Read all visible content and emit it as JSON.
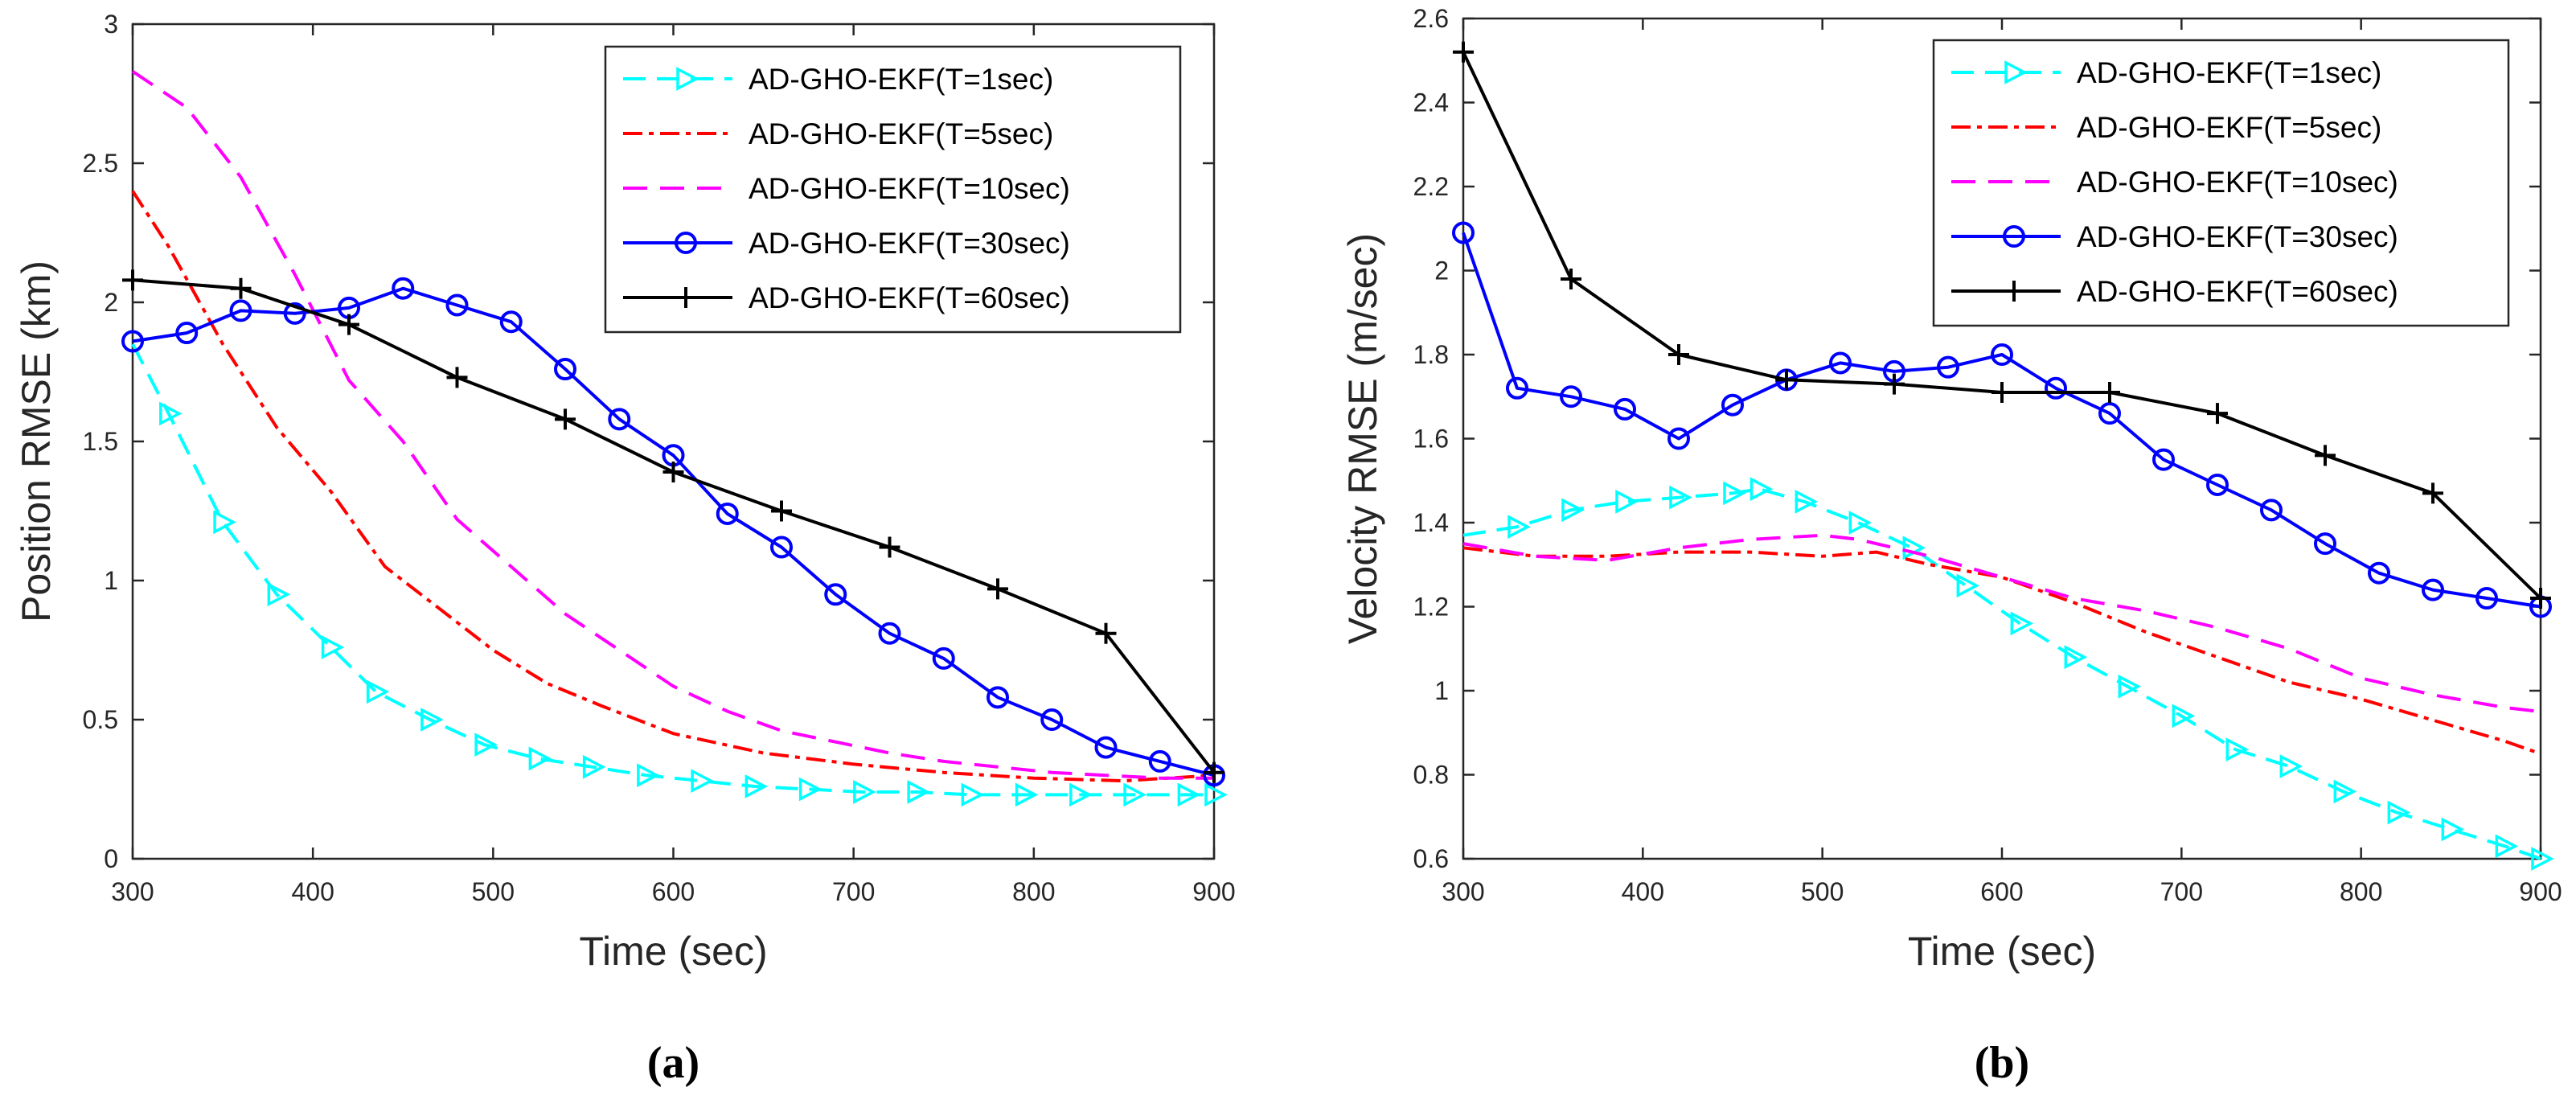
{
  "chart_data": [
    {
      "type": "line",
      "panel_label": "(a)",
      "xlabel": "Time (sec)",
      "ylabel": "Position RMSE (km)",
      "xlim": [
        300,
        900
      ],
      "ylim": [
        0,
        3
      ],
      "xticks": [
        "300",
        "400",
        "500",
        "600",
        "700",
        "800",
        "900"
      ],
      "yticks": [
        "0",
        "0.5",
        "1",
        "1.5",
        "2",
        "2.5",
        "3"
      ],
      "legend_position": "top-right",
      "series": [
        {
          "name": "AD-GHO-EKF(T=1sec)",
          "color": "#00ffff",
          "dash": "28,14",
          "marker": "triangle-right",
          "x": [
            300,
            320,
            350,
            380,
            410,
            435,
            465,
            495,
            525,
            555,
            585,
            615,
            645,
            675,
            705,
            735,
            765,
            795,
            825,
            855,
            885,
            900
          ],
          "y": [
            1.85,
            1.6,
            1.21,
            0.95,
            0.76,
            0.6,
            0.5,
            0.41,
            0.36,
            0.33,
            0.3,
            0.28,
            0.26,
            0.25,
            0.24,
            0.24,
            0.23,
            0.23,
            0.23,
            0.23,
            0.23,
            0.23
          ],
          "marker_x": [
            320,
            350,
            380,
            410,
            435,
            465,
            495,
            525,
            555,
            585,
            615,
            645,
            675,
            705,
            735,
            765,
            795,
            825,
            855,
            885,
            900
          ]
        },
        {
          "name": "AD-GHO-EKF(T=5sec)",
          "color": "#ff0000",
          "dash": "24,8,6,8",
          "marker": "none",
          "x": [
            300,
            320,
            350,
            380,
            410,
            440,
            470,
            500,
            530,
            560,
            600,
            650,
            700,
            750,
            800,
            850,
            900
          ],
          "y": [
            2.4,
            2.2,
            1.85,
            1.55,
            1.32,
            1.05,
            0.9,
            0.75,
            0.63,
            0.55,
            0.45,
            0.38,
            0.34,
            0.31,
            0.29,
            0.28,
            0.3
          ]
        },
        {
          "name": "AD-GHO-EKF(T=10sec)",
          "color": "#ff00ff",
          "dash": "30,16",
          "marker": "none",
          "x": [
            300,
            330,
            360,
            390,
            420,
            450,
            480,
            510,
            540,
            570,
            600,
            630,
            660,
            690,
            720,
            750,
            780,
            810,
            840,
            870,
            900
          ],
          "y": [
            2.83,
            2.7,
            2.45,
            2.1,
            1.72,
            1.5,
            1.22,
            1.05,
            0.88,
            0.75,
            0.62,
            0.53,
            0.46,
            0.42,
            0.38,
            0.35,
            0.33,
            0.31,
            0.3,
            0.29,
            0.29
          ]
        },
        {
          "name": "AD-GHO-EKF(T=30sec)",
          "color": "#0000ff",
          "dash": "",
          "marker": "circle",
          "x": [
            300,
            330,
            360,
            390,
            420,
            450,
            480,
            510,
            540,
            570,
            600,
            630,
            660,
            690,
            720,
            750,
            780,
            810,
            840,
            870,
            900
          ],
          "y": [
            1.86,
            1.89,
            1.97,
            1.96,
            1.98,
            2.05,
            1.99,
            1.93,
            1.76,
            1.58,
            1.45,
            1.24,
            1.12,
            0.95,
            0.81,
            0.72,
            0.58,
            0.5,
            0.4,
            0.35,
            0.3
          ]
        },
        {
          "name": "AD-GHO-EKF(T=60sec)",
          "color": "#000000",
          "dash": "",
          "marker": "plus",
          "x": [
            300,
            360,
            420,
            480,
            540,
            600,
            660,
            720,
            780,
            840,
            900
          ],
          "y": [
            2.08,
            2.05,
            1.92,
            1.73,
            1.58,
            1.39,
            1.25,
            1.12,
            0.97,
            0.81,
            0.31
          ]
        }
      ]
    },
    {
      "type": "line",
      "panel_label": "(b)",
      "xlabel": "Time (sec)",
      "ylabel": "Velocity RMSE (m/sec)",
      "xlim": [
        300,
        900
      ],
      "ylim": [
        0.6,
        2.6
      ],
      "xticks": [
        "300",
        "400",
        "500",
        "600",
        "700",
        "800",
        "900"
      ],
      "yticks": [
        "0.6",
        "0.8",
        "1",
        "1.2",
        "1.4",
        "1.6",
        "1.8",
        "2",
        "2.2",
        "2.4",
        "2.6"
      ],
      "legend_position": "top-right",
      "series": [
        {
          "name": "AD-GHO-EKF(T=1sec)",
          "color": "#00ffff",
          "dash": "28,14",
          "marker": "triangle-right",
          "x": [
            300,
            330,
            360,
            390,
            420,
            450,
            465,
            490,
            520,
            550,
            580,
            610,
            640,
            670,
            700,
            730,
            760,
            790,
            820,
            850,
            880,
            900
          ],
          "y": [
            1.37,
            1.39,
            1.43,
            1.45,
            1.46,
            1.47,
            1.48,
            1.45,
            1.4,
            1.34,
            1.25,
            1.16,
            1.08,
            1.01,
            0.94,
            0.86,
            0.82,
            0.76,
            0.71,
            0.67,
            0.63,
            0.6
          ],
          "marker_x": [
            330,
            360,
            390,
            420,
            450,
            465,
            490,
            520,
            550,
            580,
            610,
            640,
            670,
            700,
            730,
            760,
            790,
            820,
            850,
            880,
            900
          ]
        },
        {
          "name": "AD-GHO-EKF(T=5sec)",
          "color": "#ff0000",
          "dash": "24,8,6,8",
          "marker": "none",
          "x": [
            300,
            340,
            380,
            420,
            460,
            500,
            530,
            560,
            600,
            640,
            680,
            720,
            760,
            800,
            840,
            880,
            900
          ],
          "y": [
            1.34,
            1.32,
            1.32,
            1.33,
            1.33,
            1.32,
            1.33,
            1.3,
            1.27,
            1.21,
            1.14,
            1.08,
            1.02,
            0.98,
            0.93,
            0.88,
            0.85
          ]
        },
        {
          "name": "AD-GHO-EKF(T=10sec)",
          "color": "#ff00ff",
          "dash": "30,16",
          "marker": "none",
          "x": [
            300,
            340,
            380,
            420,
            460,
            500,
            520,
            560,
            600,
            640,
            680,
            720,
            760,
            800,
            840,
            880,
            900
          ],
          "y": [
            1.35,
            1.32,
            1.31,
            1.34,
            1.36,
            1.37,
            1.36,
            1.32,
            1.27,
            1.22,
            1.19,
            1.15,
            1.1,
            1.03,
            0.99,
            0.96,
            0.95
          ]
        },
        {
          "name": "AD-GHO-EKF(T=30sec)",
          "color": "#0000ff",
          "dash": "",
          "marker": "circle",
          "x": [
            300,
            330,
            360,
            390,
            420,
            450,
            480,
            510,
            540,
            570,
            600,
            630,
            660,
            690,
            720,
            750,
            780,
            810,
            840,
            870,
            900
          ],
          "y": [
            2.09,
            1.72,
            1.7,
            1.67,
            1.6,
            1.68,
            1.74,
            1.78,
            1.76,
            1.77,
            1.8,
            1.72,
            1.66,
            1.55,
            1.49,
            1.43,
            1.35,
            1.28,
            1.24,
            1.22,
            1.2
          ]
        },
        {
          "name": "AD-GHO-EKF(T=60sec)",
          "color": "#000000",
          "dash": "",
          "marker": "plus",
          "x": [
            300,
            360,
            420,
            480,
            540,
            600,
            660,
            720,
            780,
            840,
            900
          ],
          "y": [
            2.52,
            1.98,
            1.8,
            1.74,
            1.73,
            1.71,
            1.71,
            1.66,
            1.56,
            1.47,
            1.22
          ]
        }
      ]
    }
  ]
}
